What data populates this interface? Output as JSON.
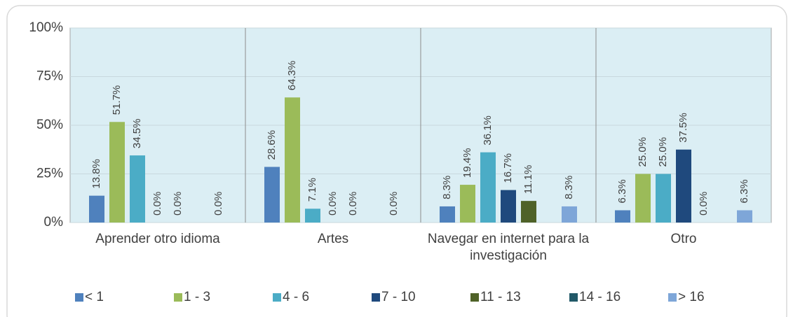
{
  "chart_data": {
    "type": "bar",
    "categories": [
      "Aprender otro idioma",
      "Artes",
      "Navegar en internet para la investigación",
      "Otro"
    ],
    "series": [
      {
        "name": "< 1",
        "color": "#4f81bd",
        "values": [
          13.8,
          28.6,
          8.3,
          6.3
        ],
        "value_labels": [
          "13.8%",
          "28.6%",
          "8.3%",
          "6.3%"
        ]
      },
      {
        "name": "1 - 3",
        "color": "#9bbb59",
        "values": [
          51.7,
          64.3,
          19.4,
          25.0
        ],
        "value_labels": [
          "51.7%",
          "64.3%",
          "19.4%",
          "25.0%"
        ]
      },
      {
        "name": "4 - 6",
        "color": "#4bacc6",
        "values": [
          34.5,
          7.1,
          36.1,
          25.0
        ],
        "value_labels": [
          "34.5%",
          "7.1%",
          "36.1%",
          "25.0%"
        ]
      },
      {
        "name": "7 - 10",
        "color": "#1f497d",
        "values": [
          0.0,
          0.0,
          16.7,
          37.5
        ],
        "value_labels": [
          "0.0%",
          "0.0%",
          "16.7%",
          "37.5%"
        ]
      },
      {
        "name": "11 - 13",
        "color": "#4f6228",
        "values": [
          0.0,
          0.0,
          11.1,
          0.0
        ],
        "value_labels": [
          "0.0%",
          "0.0%",
          "11.1%",
          "0.0%"
        ]
      },
      {
        "name": "14 - 16",
        "color": "#215968",
        "values": [
          null,
          null,
          null,
          null
        ],
        "value_labels": [
          null,
          null,
          null,
          null
        ]
      },
      {
        "name": "> 16",
        "color": "#7ea6d8",
        "values": [
          0.0,
          0.0,
          8.3,
          6.3
        ],
        "value_labels": [
          "0.0%",
          "0.0%",
          "8.3%",
          "6.3%"
        ]
      }
    ],
    "ylim": [
      0,
      100
    ],
    "yticks": [
      {
        "value": 0,
        "label": "0%"
      },
      {
        "value": 25,
        "label": "25%"
      },
      {
        "value": 50,
        "label": "50%"
      },
      {
        "value": 75,
        "label": "75%"
      },
      {
        "value": 100,
        "label": "100%"
      }
    ],
    "grid": true,
    "legend": "bottom"
  }
}
